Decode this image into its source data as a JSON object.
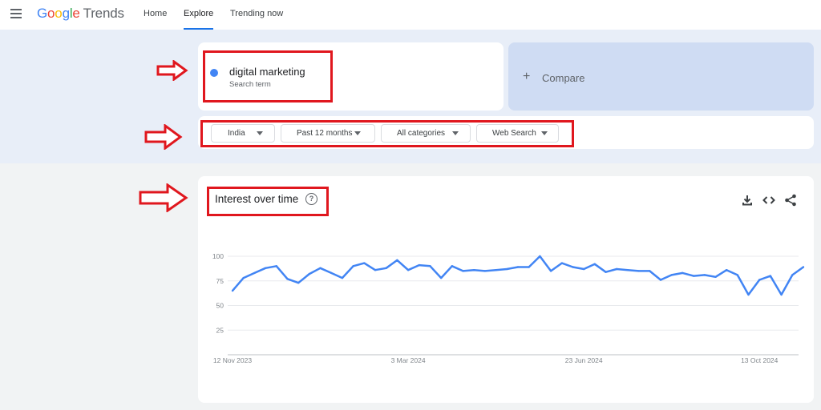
{
  "header": {
    "logo_letters": [
      "G",
      "o",
      "o",
      "g",
      "l",
      "e"
    ],
    "logo_suffix": "Trends",
    "nav": {
      "home": "Home",
      "explore": "Explore",
      "trending": "Trending now"
    }
  },
  "search": {
    "term": "digital marketing",
    "term_type": "Search term",
    "term_color": "#4285f4",
    "compare_plus": "+",
    "compare_label": "Compare"
  },
  "filters": {
    "region": "India",
    "time": "Past 12 months",
    "category": "All categories",
    "search_type": "Web Search"
  },
  "card": {
    "title": "Interest over time",
    "help_glyph": "?",
    "tools": [
      "download-icon",
      "embed-icon",
      "share-icon"
    ]
  },
  "colors": {
    "accent": "#1a73e8",
    "series": "#4285f4",
    "annotation": "#e0171e"
  },
  "chart_data": {
    "type": "line",
    "title": "",
    "xlabel": "",
    "ylabel": "",
    "ylim": [
      0,
      100
    ],
    "yticks": [
      25,
      50,
      75,
      100
    ],
    "x_tick_labels": [
      "12 Nov 2023",
      "3 Mar 2024",
      "23 Jun 2024",
      "13 Oct 2024"
    ],
    "x_tick_index": [
      0,
      16,
      32,
      48
    ],
    "grid": true,
    "series": [
      {
        "values": [
          65,
          78,
          83,
          88,
          90,
          77,
          73,
          82,
          88,
          83,
          78,
          90,
          93,
          86,
          88,
          96,
          86,
          91,
          90,
          78,
          90,
          85,
          86,
          85,
          86,
          87,
          89,
          89,
          100,
          85,
          93,
          89,
          87,
          92,
          84,
          87,
          86,
          85,
          85,
          76,
          81,
          83,
          80,
          81,
          79,
          86,
          81,
          61,
          76,
          80,
          61,
          81,
          89
        ]
      }
    ]
  }
}
